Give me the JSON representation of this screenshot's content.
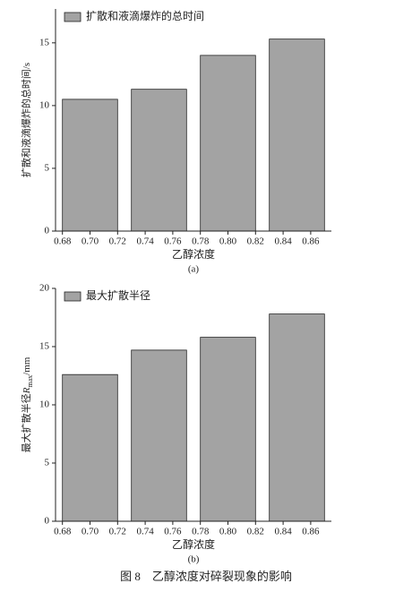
{
  "chart_data": [
    {
      "type": "bar",
      "series": [
        {
          "name": "扩散和液滴爆炸的总时间",
          "color": "#a3a3a3",
          "values": [
            10.5,
            11.3,
            14.0,
            15.3
          ]
        }
      ],
      "x": [
        0.7,
        0.75,
        0.8,
        0.85
      ],
      "xlim": [
        0.675,
        0.875
      ],
      "xticks": [
        0.68,
        {
          "value": 0.7,
          "label": "0.70"
        },
        0.72,
        0.74,
        0.76,
        0.78,
        {
          "value": 0.8,
          "label": "0.80"
        },
        0.82,
        0.84,
        0.86
      ],
      "ylim": [
        0,
        17.7
      ],
      "yticks": [
        0,
        5,
        10,
        15
      ],
      "xlabel": "乙醇浓度",
      "ylabel": {
        "text": "扩散和液滴爆炸的总时间/s"
      },
      "panel_label": "(a)",
      "legend": "upper-left"
    },
    {
      "type": "bar",
      "series": [
        {
          "name": "最大扩散半径",
          "color": "#a3a3a3",
          "values": [
            12.6,
            14.7,
            15.8,
            17.8
          ]
        }
      ],
      "x": [
        0.7,
        0.75,
        0.8,
        0.85
      ],
      "xlim": [
        0.675,
        0.875
      ],
      "xticks": [
        0.68,
        {
          "value": 0.7,
          "label": "0.70"
        },
        0.72,
        0.74,
        0.76,
        0.78,
        {
          "value": 0.8,
          "label": "0.80"
        },
        0.82,
        0.84,
        0.86
      ],
      "ylim": [
        0,
        20
      ],
      "yticks": [
        0,
        5,
        10,
        15,
        20
      ],
      "xlabel": "乙醇浓度",
      "ylabel": {
        "text": "最大扩散半径",
        "var": "R",
        "sub": "max",
        "unit": "/mm"
      },
      "panel_label": "(b)",
      "legend": "upper-left"
    }
  ],
  "caption": "图 8　乙醇浓度对碎裂现象的影响"
}
